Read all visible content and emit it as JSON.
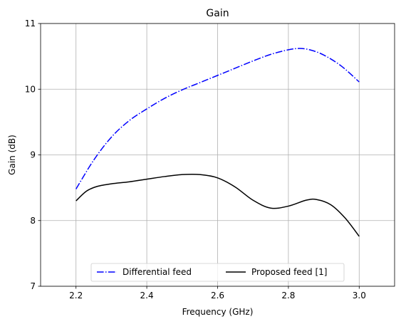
{
  "chart_data": {
    "type": "line",
    "title": "Gain",
    "xlabel": "Frequency (GHz)",
    "ylabel": "Gain (dB)",
    "xlim": [
      2.1,
      3.1
    ],
    "ylim": [
      7,
      11
    ],
    "xticks": [
      "2.2",
      "2.4",
      "2.6",
      "2.8",
      "3.0"
    ],
    "xtick_values": [
      2.2,
      2.4,
      2.6,
      2.8,
      3.0
    ],
    "yticks": [
      "7",
      "8",
      "9",
      "10",
      "11"
    ],
    "ytick_values": [
      7,
      8,
      9,
      10,
      11
    ],
    "grid": true,
    "legend_position": "bottom-center",
    "series": [
      {
        "name": "Differential feed",
        "color": "#0000ff",
        "linestyle": "dashdot",
        "x": [
          2.2,
          2.25,
          2.3,
          2.35,
          2.4,
          2.45,
          2.5,
          2.55,
          2.6,
          2.65,
          2.7,
          2.75,
          2.8,
          2.83,
          2.86,
          2.9,
          2.95,
          3.0
        ],
        "y": [
          8.48,
          8.92,
          9.27,
          9.52,
          9.7,
          9.86,
          9.99,
          10.1,
          10.21,
          10.32,
          10.43,
          10.53,
          10.6,
          10.62,
          10.6,
          10.52,
          10.35,
          10.11
        ]
      },
      {
        "name": "Proposed feed [1]",
        "color": "#000000",
        "linestyle": "solid",
        "x": [
          2.2,
          2.23,
          2.26,
          2.3,
          2.35,
          2.4,
          2.45,
          2.5,
          2.55,
          2.6,
          2.65,
          2.7,
          2.75,
          2.8,
          2.85,
          2.88,
          2.92,
          2.96,
          3.0
        ],
        "y": [
          8.3,
          8.45,
          8.52,
          8.56,
          8.59,
          8.63,
          8.67,
          8.7,
          8.7,
          8.65,
          8.51,
          8.31,
          8.19,
          8.22,
          8.31,
          8.32,
          8.24,
          8.04,
          7.76
        ]
      }
    ]
  }
}
